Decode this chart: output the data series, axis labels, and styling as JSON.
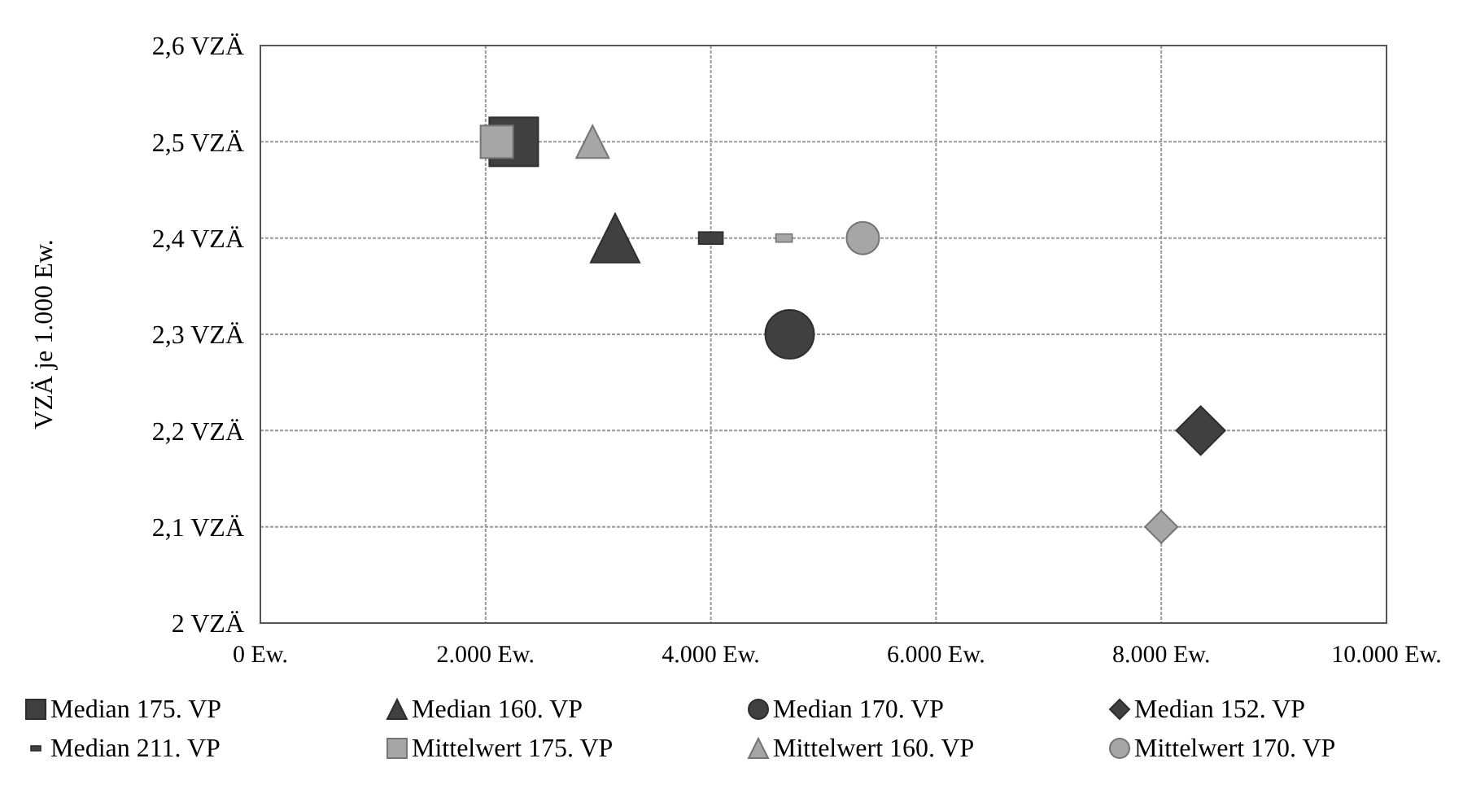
{
  "chart_data": {
    "type": "scatter",
    "ylabel": "VZÄ je 1.000 Ew.",
    "xlim": [
      0,
      10000
    ],
    "xticks": [
      {
        "value": 0,
        "label": "0 Ew."
      },
      {
        "value": 2000,
        "label": "2.000 Ew."
      },
      {
        "value": 4000,
        "label": "4.000 Ew."
      },
      {
        "value": 6000,
        "label": "6.000 Ew."
      },
      {
        "value": 8000,
        "label": "8.000 Ew."
      },
      {
        "value": 10000,
        "label": "10.000 Ew."
      }
    ],
    "ylim": [
      2,
      2.6
    ],
    "yticks": [
      {
        "value": 2,
        "label": "2 VZÄ"
      },
      {
        "value": 2.1,
        "label": "2,1 VZÄ"
      },
      {
        "value": 2.2,
        "label": "2,2 VZÄ"
      },
      {
        "value": 2.3,
        "label": "2,3 VZÄ"
      },
      {
        "value": 2.4,
        "label": "2,4 VZÄ"
      },
      {
        "value": 2.5,
        "label": "2,5 VZÄ"
      },
      {
        "value": 2.6,
        "label": "2,6 VZÄ"
      }
    ],
    "grid": true,
    "legend": "bottom",
    "series": [
      {
        "name": "Median 175. VP",
        "color": "#404040",
        "marker": "square",
        "x": [
          2250
        ],
        "values": [
          2.5
        ]
      },
      {
        "name": "Median 160. VP",
        "color": "#404040",
        "marker": "triangle",
        "x": [
          3150
        ],
        "values": [
          2.4
        ]
      },
      {
        "name": "Median 170. VP",
        "color": "#404040",
        "marker": "circle",
        "x": [
          4700
        ],
        "values": [
          2.3
        ]
      },
      {
        "name": "Median 152. VP",
        "color": "#404040",
        "marker": "diamond",
        "x": [
          8350
        ],
        "values": [
          2.2
        ]
      },
      {
        "name": "Median 211. VP",
        "color": "#404040",
        "x": [
          4000
        ],
        "values": [
          2.4
        ]
      },
      {
        "name": "Mittelwert 175. VP",
        "color": "#a6a6a6",
        "marker": "square",
        "x": [
          2100
        ],
        "values": [
          2.5
        ]
      },
      {
        "name": "Mittelwert 160. VP",
        "color": "#a6a6a6",
        "marker": "triangle",
        "x": [
          2950
        ],
        "values": [
          2.5
        ]
      },
      {
        "name": "Mittelwert 170. VP",
        "color": "#a6a6a6",
        "marker": "circle",
        "x": [
          5350
        ],
        "values": [
          2.4
        ]
      },
      {
        "color": "#a6a6a6",
        "marker": "diamond",
        "x": [
          8000
        ],
        "values": [
          2.1
        ]
      },
      {
        "color": "#a6a6a6",
        "x": [
          4650
        ],
        "values": [
          2.4
        ]
      }
    ]
  }
}
